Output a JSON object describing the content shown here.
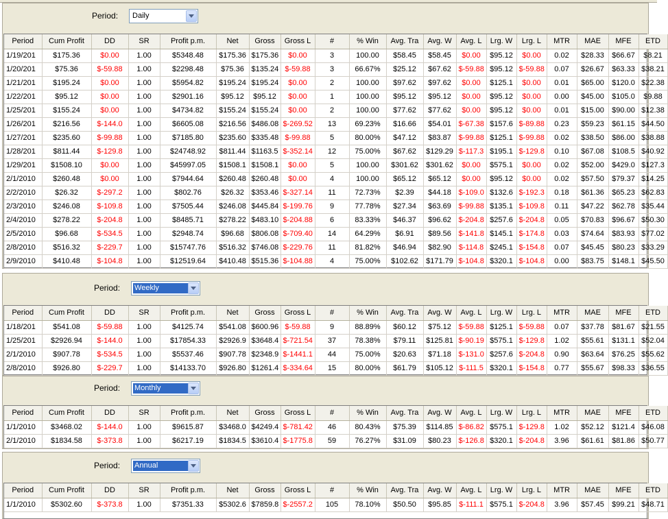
{
  "columns": [
    "Period",
    "Cum Profit",
    "DD",
    "SR",
    "Profit p.m.",
    "Net",
    "Gross",
    "Gross L",
    "#",
    "% Win",
    "Avg. Tra",
    "Avg. W",
    "Avg. L",
    "Lrg. W",
    "Lrg. L",
    "MTR",
    "MAE",
    "MFE",
    "ETD"
  ],
  "period_label": "Period:",
  "daily": {
    "selected": "Daily",
    "rows": [
      [
        "1/19/201",
        "$175.36",
        "$0.00",
        "1.00",
        "$5348.48",
        "$175.36",
        "$175.36",
        "$0.00",
        "3",
        "100.00",
        "$58.45",
        "$58.45",
        "$0.00",
        "$95.12",
        "$0.00",
        "0.02",
        "$28.33",
        "$66.67",
        "$8.21"
      ],
      [
        "1/20/201",
        "$75.36",
        "$-59.88",
        "1.00",
        "$2298.48",
        "$75.36",
        "$135.24",
        "$-59.88",
        "3",
        "66.67%",
        "$25.12",
        "$67.62",
        "$-59.88",
        "$95.12",
        "$-59.88",
        "0.07",
        "$26.67",
        "$63.33",
        "$38.21"
      ],
      [
        "1/21/201",
        "$195.24",
        "$0.00",
        "1.00",
        "$5954.82",
        "$195.24",
        "$195.24",
        "$0.00",
        "2",
        "100.00",
        "$97.62",
        "$97.62",
        "$0.00",
        "$125.1",
        "$0.00",
        "0.01",
        "$65.00",
        "$120.0",
        "$22.38"
      ],
      [
        "1/22/201",
        "$95.12",
        "$0.00",
        "1.00",
        "$2901.16",
        "$95.12",
        "$95.12",
        "$0.00",
        "1",
        "100.00",
        "$95.12",
        "$95.12",
        "$0.00",
        "$95.12",
        "$0.00",
        "0.00",
        "$45.00",
        "$105.0",
        "$9.88"
      ],
      [
        "1/25/201",
        "$155.24",
        "$0.00",
        "1.00",
        "$4734.82",
        "$155.24",
        "$155.24",
        "$0.00",
        "2",
        "100.00",
        "$77.62",
        "$77.62",
        "$0.00",
        "$95.12",
        "$0.00",
        "0.01",
        "$15.00",
        "$90.00",
        "$12.38"
      ],
      [
        "1/26/201",
        "$216.56",
        "$-144.0",
        "1.00",
        "$6605.08",
        "$216.56",
        "$486.08",
        "$-269.52",
        "13",
        "69.23%",
        "$16.66",
        "$54.01",
        "$-67.38",
        "$157.6",
        "$-89.88",
        "0.23",
        "$59.23",
        "$61.15",
        "$44.50"
      ],
      [
        "1/27/201",
        "$235.60",
        "$-99.88",
        "1.00",
        "$7185.80",
        "$235.60",
        "$335.48",
        "$-99.88",
        "5",
        "80.00%",
        "$47.12",
        "$83.87",
        "$-99.88",
        "$125.1",
        "$-99.88",
        "0.02",
        "$38.50",
        "$86.00",
        "$38.88"
      ],
      [
        "1/28/201",
        "$811.44",
        "$-129.8",
        "1.00",
        "$24748.92",
        "$811.44",
        "$1163.5",
        "$-352.14",
        "12",
        "75.00%",
        "$67.62",
        "$129.29",
        "$-117.3",
        "$195.1",
        "$-129.8",
        "0.10",
        "$67.08",
        "$108.5",
        "$40.92"
      ],
      [
        "1/29/201",
        "$1508.10",
        "$0.00",
        "1.00",
        "$45997.05",
        "$1508.1",
        "$1508.1",
        "$0.00",
        "5",
        "100.00",
        "$301.62",
        "$301.62",
        "$0.00",
        "$575.1",
        "$0.00",
        "0.02",
        "$52.00",
        "$429.0",
        "$127.3"
      ],
      [
        "2/1/2010",
        "$260.48",
        "$0.00",
        "1.00",
        "$7944.64",
        "$260.48",
        "$260.48",
        "$0.00",
        "4",
        "100.00",
        "$65.12",
        "$65.12",
        "$0.00",
        "$95.12",
        "$0.00",
        "0.02",
        "$57.50",
        "$79.37",
        "$14.25"
      ],
      [
        "2/2/2010",
        "$26.32",
        "$-297.2",
        "1.00",
        "$802.76",
        "$26.32",
        "$353.46",
        "$-327.14",
        "11",
        "72.73%",
        "$2.39",
        "$44.18",
        "$-109.0",
        "$132.6",
        "$-192.3",
        "0.18",
        "$61.36",
        "$65.23",
        "$62.83"
      ],
      [
        "2/3/2010",
        "$246.08",
        "$-109.8",
        "1.00",
        "$7505.44",
        "$246.08",
        "$445.84",
        "$-199.76",
        "9",
        "77.78%",
        "$27.34",
        "$63.69",
        "$-99.88",
        "$135.1",
        "$-109.8",
        "0.11",
        "$47.22",
        "$62.78",
        "$35.44"
      ],
      [
        "2/4/2010",
        "$278.22",
        "$-204.8",
        "1.00",
        "$8485.71",
        "$278.22",
        "$483.10",
        "$-204.88",
        "6",
        "83.33%",
        "$46.37",
        "$96.62",
        "$-204.8",
        "$257.6",
        "$-204.8",
        "0.05",
        "$70.83",
        "$96.67",
        "$50.30"
      ],
      [
        "2/5/2010",
        "$96.68",
        "$-534.5",
        "1.00",
        "$2948.74",
        "$96.68",
        "$806.08",
        "$-709.40",
        "14",
        "64.29%",
        "$6.91",
        "$89.56",
        "$-141.8",
        "$145.1",
        "$-174.8",
        "0.03",
        "$74.64",
        "$83.93",
        "$77.02"
      ],
      [
        "2/8/2010",
        "$516.32",
        "$-229.7",
        "1.00",
        "$15747.76",
        "$516.32",
        "$746.08",
        "$-229.76",
        "11",
        "81.82%",
        "$46.94",
        "$82.90",
        "$-114.8",
        "$245.1",
        "$-154.8",
        "0.07",
        "$45.45",
        "$80.23",
        "$33.29"
      ],
      [
        "2/9/2010",
        "$410.48",
        "$-104.8",
        "1.00",
        "$12519.64",
        "$410.48",
        "$515.36",
        "$-104.88",
        "4",
        "75.00%",
        "$102.62",
        "$171.79",
        "$-104.8",
        "$320.1",
        "$-104.8",
        "0.00",
        "$83.75",
        "$148.1",
        "$45.50"
      ]
    ]
  },
  "weekly": {
    "selected": "Weekly",
    "rows": [
      [
        "1/18/201",
        "$541.08",
        "$-59.88",
        "1.00",
        "$4125.74",
        "$541.08",
        "$600.96",
        "$-59.88",
        "9",
        "88.89%",
        "$60.12",
        "$75.12",
        "$-59.88",
        "$125.1",
        "$-59.88",
        "0.07",
        "$37.78",
        "$81.67",
        "$21.55"
      ],
      [
        "1/25/201",
        "$2926.94",
        "$-144.0",
        "1.00",
        "$17854.33",
        "$2926.9",
        "$3648.4",
        "$-721.54",
        "37",
        "78.38%",
        "$79.11",
        "$125.81",
        "$-90.19",
        "$575.1",
        "$-129.8",
        "1.02",
        "$55.61",
        "$131.1",
        "$52.04"
      ],
      [
        "2/1/2010",
        "$907.78",
        "$-534.5",
        "1.00",
        "$5537.46",
        "$907.78",
        "$2348.9",
        "$-1441.1",
        "44",
        "75.00%",
        "$20.63",
        "$71.18",
        "$-131.0",
        "$257.6",
        "$-204.8",
        "0.90",
        "$63.64",
        "$76.25",
        "$55.62"
      ],
      [
        "2/8/2010",
        "$926.80",
        "$-229.7",
        "1.00",
        "$14133.70",
        "$926.80",
        "$1261.4",
        "$-334.64",
        "15",
        "80.00%",
        "$61.79",
        "$105.12",
        "$-111.5",
        "$320.1",
        "$-154.8",
        "0.77",
        "$55.67",
        "$98.33",
        "$36.55"
      ]
    ]
  },
  "monthly": {
    "selected": "Monthly",
    "rows": [
      [
        "1/1/2010",
        "$3468.02",
        "$-144.0",
        "1.00",
        "$9615.87",
        "$3468.0",
        "$4249.4",
        "$-781.42",
        "46",
        "80.43%",
        "$75.39",
        "$114.85",
        "$-86.82",
        "$575.1",
        "$-129.8",
        "1.02",
        "$52.12",
        "$121.4",
        "$46.08"
      ],
      [
        "2/1/2010",
        "$1834.58",
        "$-373.8",
        "1.00",
        "$6217.19",
        "$1834.5",
        "$3610.4",
        "$-1775.8",
        "59",
        "76.27%",
        "$31.09",
        "$80.23",
        "$-126.8",
        "$320.1",
        "$-204.8",
        "3.96",
        "$61.61",
        "$81.86",
        "$50.77"
      ]
    ]
  },
  "annual": {
    "selected": "Annual",
    "rows": [
      [
        "1/1/2010",
        "$5302.60",
        "$-373.8",
        "1.00",
        "$7351.33",
        "$5302.6",
        "$7859.8",
        "$-2557.2",
        "105",
        "78.10%",
        "$50.50",
        "$95.85",
        "$-111.1",
        "$575.1",
        "$-204.8",
        "3.96",
        "$57.45",
        "$99.21",
        "$48.71"
      ]
    ]
  },
  "colors": {
    "panel_bg": "#ece9d8",
    "negative": "#ff0000",
    "selection": "#316ac5"
  },
  "icons": {
    "combo_arrow": "chevron-down-icon"
  }
}
